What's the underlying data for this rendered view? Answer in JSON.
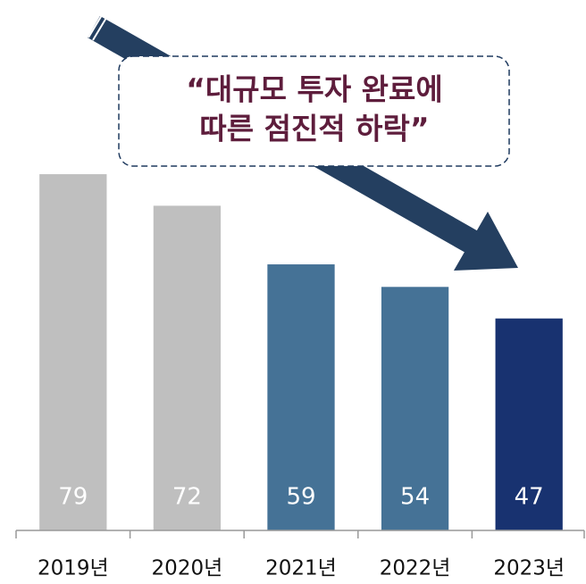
{
  "chart_data": {
    "type": "bar",
    "annotation": [
      "“대규모 투자 완료에",
      "따른 점진적 하락”"
    ],
    "categories": [
      "2019년",
      "2020년",
      "2021년",
      "2022년",
      "2023년"
    ],
    "values": [
      79,
      72,
      59,
      54,
      47
    ],
    "colors": [
      "#bfbfbf",
      "#bfbfbf",
      "#457296",
      "#457296",
      "#183270"
    ],
    "ylim": [
      0,
      80
    ]
  }
}
